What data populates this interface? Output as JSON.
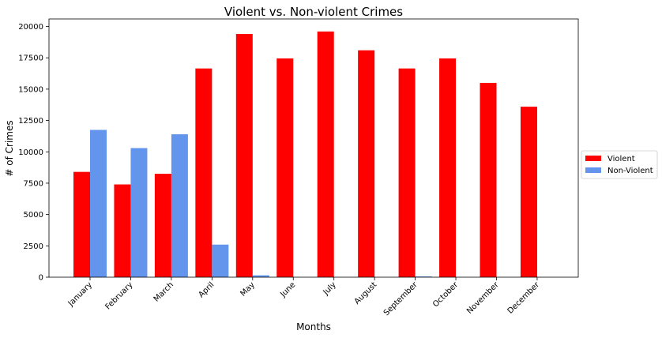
{
  "chart_data": {
    "type": "bar",
    "title": "Violent vs. Non-violent Crimes",
    "xlabel": "Months",
    "ylabel": "# of Crimes",
    "categories": [
      "January",
      "February",
      "March",
      "April",
      "May",
      "June",
      "July",
      "August",
      "September",
      "October",
      "November",
      "December"
    ],
    "series": [
      {
        "name": "Violent",
        "color": "#ff0000",
        "values": [
          8400,
          7400,
          8250,
          16650,
          19400,
          17450,
          19600,
          18100,
          16650,
          17450,
          15500,
          13600
        ]
      },
      {
        "name": "Non-Violent",
        "color": "#6495ed",
        "values": [
          11750,
          10300,
          11400,
          2600,
          150,
          0,
          0,
          0,
          60,
          0,
          0,
          0
        ]
      }
    ],
    "ylim": [
      0,
      20600
    ],
    "yticks": [
      0,
      2500,
      5000,
      7500,
      10000,
      12500,
      15000,
      17500,
      20000
    ],
    "legend": "outside-right",
    "grid": false
  }
}
